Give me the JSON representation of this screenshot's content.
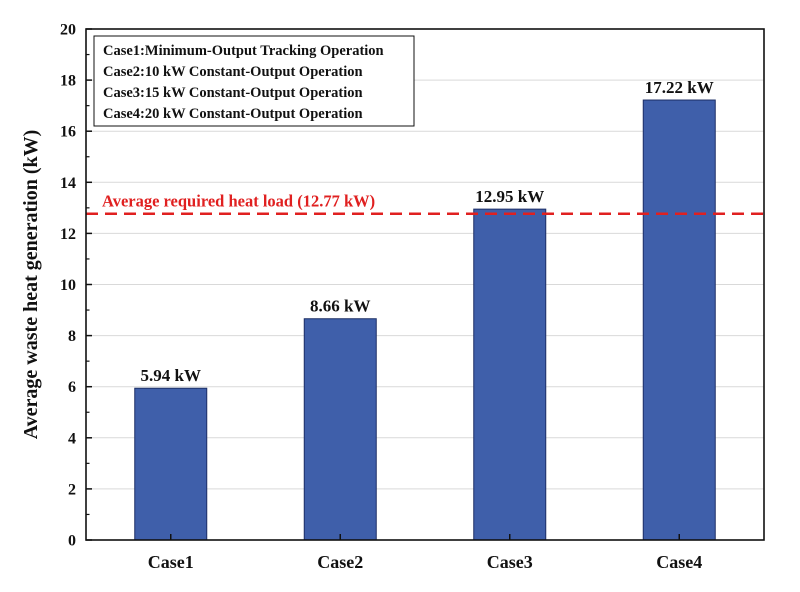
{
  "chart_data": {
    "type": "bar",
    "categories": [
      "Case1",
      "Case2",
      "Case3",
      "Case4"
    ],
    "values": [
      5.94,
      8.66,
      12.95,
      17.22
    ],
    "data_labels": [
      "5.94 kW",
      "8.66 kW",
      "12.95 kW",
      "17.22 kW"
    ],
    "ylabel": "Average waste heat generation (kW)",
    "xlabel": "",
    "ylim": [
      0,
      20
    ],
    "yticks": [
      0,
      2,
      4,
      6,
      8,
      10,
      12,
      14,
      16,
      18,
      20
    ],
    "grid": true,
    "legend_placement": "top-left",
    "legend_entries": [
      "Case1:Minimum-Output Tracking Operation",
      "Case2:10 kW Constant-Output Operation",
      "Case3:15 kW Constant-Output Operation",
      "Case4:20 kW Constant-Output Operation"
    ],
    "reference_line": {
      "value": 12.77,
      "label": "Average required heat load (12.77 kW)",
      "style": "dashed"
    }
  },
  "colors": {
    "bar": "#3f5faa",
    "reference_line": "#e02020",
    "grid": "#d9d9d9"
  }
}
